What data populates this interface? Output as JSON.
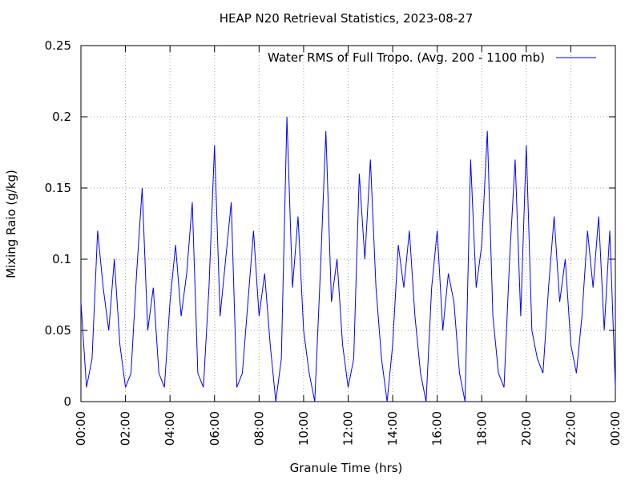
{
  "chart_data": {
    "type": "line",
    "title": "HEAP N20 Retrieval Statistics, 2023-08-27",
    "xlabel": "Granule Time (hrs)",
    "ylabel": "Mixing Raio (g/kg)",
    "xlim": [
      0,
      24
    ],
    "ylim": [
      0,
      0.25
    ],
    "xticks": [
      {
        "value": 0,
        "label": "00:00"
      },
      {
        "value": 2,
        "label": "02:00"
      },
      {
        "value": 4,
        "label": "04:00"
      },
      {
        "value": 6,
        "label": "06:00"
      },
      {
        "value": 8,
        "label": "08:00"
      },
      {
        "value": 10,
        "label": "10:00"
      },
      {
        "value": 12,
        "label": "12:00"
      },
      {
        "value": 14,
        "label": "14:00"
      },
      {
        "value": 16,
        "label": "16:00"
      },
      {
        "value": 18,
        "label": "18:00"
      },
      {
        "value": 20,
        "label": "20:00"
      },
      {
        "value": 22,
        "label": "22:00"
      },
      {
        "value": 24,
        "label": "00:00"
      }
    ],
    "yticks": [
      0,
      0.05,
      0.1,
      0.15,
      0.2,
      0.25
    ],
    "grid": true,
    "legend": "top-right",
    "x": [
      0,
      0.25,
      0.5,
      0.75,
      1,
      1.25,
      1.5,
      1.75,
      2,
      2.25,
      2.5,
      2.75,
      3,
      3.25,
      3.5,
      3.75,
      4,
      4.25,
      4.5,
      4.75,
      5,
      5.25,
      5.5,
      5.75,
      6,
      6.25,
      6.5,
      6.75,
      7,
      7.25,
      7.5,
      7.75,
      8,
      8.25,
      8.5,
      8.75,
      9,
      9.25,
      9.5,
      9.75,
      10,
      10.25,
      10.5,
      10.75,
      11,
      11.25,
      11.5,
      11.75,
      12,
      12.25,
      12.5,
      12.75,
      13,
      13.25,
      13.5,
      13.75,
      14,
      14.25,
      14.5,
      14.75,
      15,
      15.25,
      15.5,
      15.75,
      16,
      16.25,
      16.5,
      16.75,
      17,
      17.25,
      17.5,
      17.75,
      18,
      18.25,
      18.5,
      18.75,
      19,
      19.25,
      19.5,
      19.75,
      20,
      20.25,
      20.5,
      20.75,
      21,
      21.25,
      21.5,
      21.75,
      22,
      22.25,
      22.5,
      22.75,
      23,
      23.25,
      23.5,
      23.75,
      24
    ],
    "series": [
      {
        "name": "Water RMS of Full Tropo. (Avg. 200 - 1100 mb)",
        "color": "#0000ff",
        "values": [
          0.07,
          0.01,
          0.03,
          0.12,
          0.08,
          0.05,
          0.1,
          0.04,
          0.01,
          0.02,
          0.09,
          0.15,
          0.05,
          0.08,
          0.02,
          0.01,
          0.07,
          0.11,
          0.06,
          0.09,
          0.14,
          0.02,
          0.01,
          0.08,
          0.18,
          0.06,
          0.1,
          0.14,
          0.01,
          0.02,
          0.07,
          0.12,
          0.06,
          0.09,
          0.04,
          0.0,
          0.03,
          0.2,
          0.08,
          0.13,
          0.05,
          0.02,
          0.0,
          0.09,
          0.19,
          0.07,
          0.1,
          0.04,
          0.01,
          0.03,
          0.16,
          0.1,
          0.17,
          0.08,
          0.03,
          0.0,
          0.04,
          0.11,
          0.08,
          0.12,
          0.06,
          0.02,
          0.0,
          0.08,
          0.12,
          0.05,
          0.09,
          0.07,
          0.02,
          0.0,
          0.17,
          0.08,
          0.11,
          0.19,
          0.06,
          0.02,
          0.01,
          0.1,
          0.17,
          0.06,
          0.18,
          0.05,
          0.03,
          0.02,
          0.08,
          0.13,
          0.07,
          0.1,
          0.04,
          0.02,
          0.06,
          0.12,
          0.08,
          0.13,
          0.05,
          0.12,
          0.01
        ]
      }
    ]
  }
}
